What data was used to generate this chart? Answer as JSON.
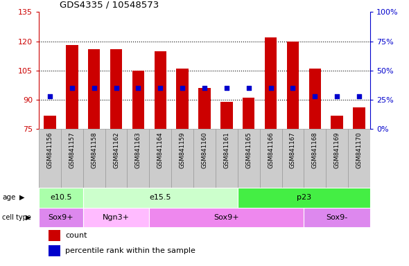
{
  "title": "GDS4335 / 10548573",
  "samples": [
    "GSM841156",
    "GSM841157",
    "GSM841158",
    "GSM841162",
    "GSM841163",
    "GSM841164",
    "GSM841159",
    "GSM841160",
    "GSM841161",
    "GSM841165",
    "GSM841166",
    "GSM841167",
    "GSM841168",
    "GSM841169",
    "GSM841170"
  ],
  "bar_heights": [
    82,
    118,
    116,
    116,
    105,
    115,
    106,
    96,
    89,
    91,
    122,
    120,
    106,
    82,
    86
  ],
  "bar_base": 75,
  "blue_percentile": [
    28,
    35,
    35,
    35,
    35,
    35,
    35,
    35,
    35,
    35,
    35,
    35,
    28,
    28,
    28
  ],
  "ylim_left": [
    75,
    135
  ],
  "ylim_right": [
    0,
    100
  ],
  "yticks_left": [
    75,
    90,
    105,
    120,
    135
  ],
  "yticks_right": [
    0,
    25,
    50,
    75,
    100
  ],
  "bar_color": "#CC0000",
  "dot_color": "#0000CC",
  "age_groups": [
    {
      "label": "e10.5",
      "start": 0,
      "end": 2,
      "color": "#aaffaa"
    },
    {
      "label": "e15.5",
      "start": 2,
      "end": 9,
      "color": "#ccffcc"
    },
    {
      "label": "p23",
      "start": 9,
      "end": 15,
      "color": "#44ee44"
    }
  ],
  "cell_groups": [
    {
      "label": "Sox9+",
      "start": 0,
      "end": 2,
      "color": "#dd88ee"
    },
    {
      "label": "Ngn3+",
      "start": 2,
      "end": 5,
      "color": "#ffbbff"
    },
    {
      "label": "Sox9+",
      "start": 5,
      "end": 12,
      "color": "#ee88ee"
    },
    {
      "label": "Sox9-",
      "start": 12,
      "end": 15,
      "color": "#dd88ee"
    }
  ],
  "left_axis_color": "#CC0000",
  "right_axis_color": "#0000CC",
  "xtick_bg_color": "#cccccc",
  "xtick_border_color": "#999999"
}
